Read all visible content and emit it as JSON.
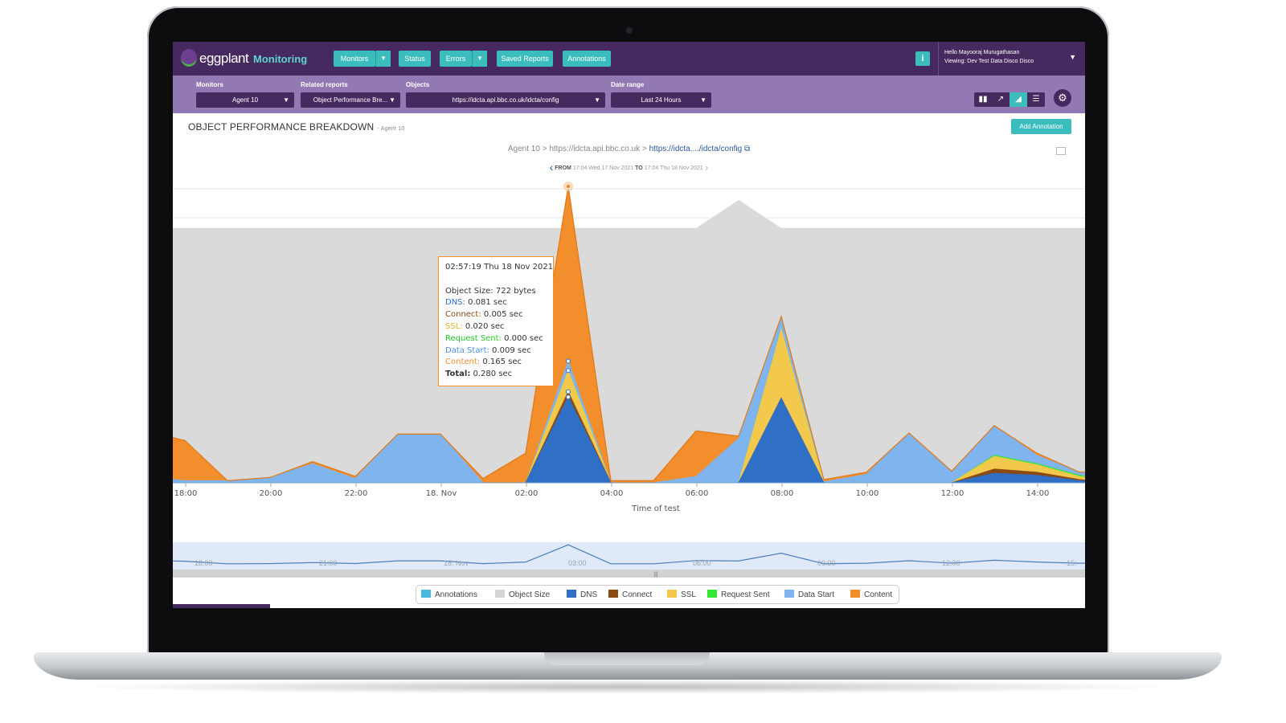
{
  "app": {
    "brand": "eggplant",
    "brand_sub": "Monitoring"
  },
  "nav": {
    "monitors": "Monitors",
    "status": "Status",
    "errors": "Errors",
    "saved_reports": "Saved Reports",
    "annotations": "Annotations",
    "info": "i"
  },
  "user": {
    "hello": "Hello Mayooraj Murugathasan",
    "viewing": "Viewing: Dev Test Data Disco Disco"
  },
  "filters": {
    "monitors_label": "Monitors",
    "monitors_value": "Agent 10",
    "related_label": "Related reports",
    "related_value": "Object Performance Bre...",
    "objects_label": "Objects",
    "objects_value": "https://idcta.api.bbc.co.uk/idcta/config",
    "date_label": "Date range",
    "date_value": "Last 24 Hours"
  },
  "page": {
    "title": "OBJECT PERFORMANCE BREAKDOWN",
    "subtitle": "- Agent 10",
    "add_annotation": "Add Annotation",
    "crumb_agent": "Agent 10",
    "crumb_host": "https://idcta.api.bbc.co.uk",
    "crumb_link": "https://idcta..../idcta/config",
    "range_from_label": "FROM",
    "range_from": "17:04 Wed 17 Nov 2021",
    "range_to_label": "TO",
    "range_to": "17:04 Thu 18 Nov 2021"
  },
  "tooltip": {
    "time": "02:57:19 Thu 18 Nov 2021",
    "object_size_label": "Object Size:",
    "object_size": "722 bytes",
    "dns_label": "DNS:",
    "dns": "0.081 sec",
    "connect_label": "Connect:",
    "connect": "0.005 sec",
    "ssl_label": "SSL:",
    "ssl": "0.020 sec",
    "request_label": "Request Sent:",
    "request": "0.000 sec",
    "datastart_label": "Data Start:",
    "datastart": "0.009 sec",
    "content_label": "Content:",
    "content": "0.165 sec",
    "total_label": "Total:",
    "total": "0.280 sec"
  },
  "colors": {
    "annotations": "#4ab8d8",
    "object_size": "#d4d4d4",
    "dns": "#2f6fc6",
    "connect": "#8b4a12",
    "ssl": "#f2c94c",
    "request_sent": "#35e635",
    "data_start": "#7fb4ee",
    "content": "#f28e2b"
  },
  "legend": [
    "Annotations",
    "Object Size",
    "DNS",
    "Connect",
    "SSL",
    "Request Sent",
    "Data Start",
    "Content"
  ],
  "chart_data": {
    "type": "area",
    "xlabel": "Time of test",
    "x_ticks": [
      "18:00",
      "20:00",
      "22:00",
      "18. Nov",
      "02:00",
      "04:00",
      "06:00",
      "08:00",
      "10:00",
      "12:00",
      "14:00"
    ],
    "x": [
      "17:04",
      "18:00",
      "19:00",
      "20:00",
      "21:00",
      "22:00",
      "23:00",
      "18. Nov",
      "01:00",
      "02:00",
      "03:00",
      "04:00",
      "05:00",
      "06:00",
      "07:00",
      "08:00",
      "09:00",
      "10:00",
      "11:00",
      "12:00",
      "13:00",
      "14:00",
      "15:00",
      "16:00",
      "17:04"
    ],
    "series": [
      {
        "name": "DNS",
        "values": [
          0,
          0,
          0,
          0,
          0,
          0,
          0,
          0,
          0,
          0,
          0.081,
          0,
          0,
          0,
          0,
          0.08,
          0,
          0,
          0,
          0,
          0.009,
          0.007,
          0.002,
          0,
          0
        ]
      },
      {
        "name": "Connect",
        "values": [
          0,
          0,
          0,
          0,
          0,
          0,
          0,
          0,
          0,
          0,
          0.005,
          0,
          0,
          0,
          0,
          0,
          0,
          0,
          0,
          0,
          0.004,
          0.003,
          0.001,
          0,
          0
        ]
      },
      {
        "name": "SSL",
        "values": [
          0,
          0,
          0,
          0,
          0,
          0,
          0,
          0,
          0,
          0,
          0.02,
          0,
          0,
          0,
          0,
          0.065,
          0,
          0,
          0,
          0,
          0.012,
          0.007,
          0.003,
          0,
          0
        ]
      },
      {
        "name": "Request Sent",
        "values": [
          0,
          0,
          0,
          0,
          0,
          0,
          0,
          0,
          0,
          0,
          0,
          0,
          0,
          0,
          0,
          0,
          0,
          0,
          0,
          0,
          0.001,
          0.001,
          0.001,
          0,
          0
        ]
      },
      {
        "name": "Data Start",
        "values": [
          0.006,
          0.002,
          0.002,
          0.005,
          0.018,
          0.004,
          0.046,
          0.046,
          0,
          0,
          0.009,
          0,
          0,
          0.006,
          0.042,
          0.012,
          0.001,
          0.008,
          0.047,
          0.01,
          0.028,
          0.008,
          0.003,
          0.008,
          0.006
        ]
      },
      {
        "name": "Content",
        "values": [
          0.043,
          0.038,
          0,
          0,
          0.002,
          0.002,
          0,
          0,
          0.004,
          0.028,
          0.165,
          0.002,
          0.002,
          0.043,
          0.002,
          0,
          0.002,
          0.002,
          0,
          0.001,
          0,
          0.002,
          0,
          0.003,
          0.003
        ]
      }
    ],
    "object_size": {
      "name": "Object Size",
      "values": [
        722,
        722,
        722,
        722,
        722,
        722,
        722,
        722,
        722,
        722,
        722,
        722,
        722,
        722,
        800,
        722,
        722,
        722,
        722,
        722,
        722,
        722,
        722,
        722,
        722
      ]
    },
    "highlight": {
      "time": "02:57:19 Thu 18 Nov 2021",
      "total": 0.28
    },
    "grid": true,
    "legend_position": "bottom",
    "navigator_ticks": [
      "18:00",
      "21:00",
      "18. Nov",
      "03:00",
      "06:00",
      "09:00",
      "12:00",
      "15:"
    ]
  }
}
